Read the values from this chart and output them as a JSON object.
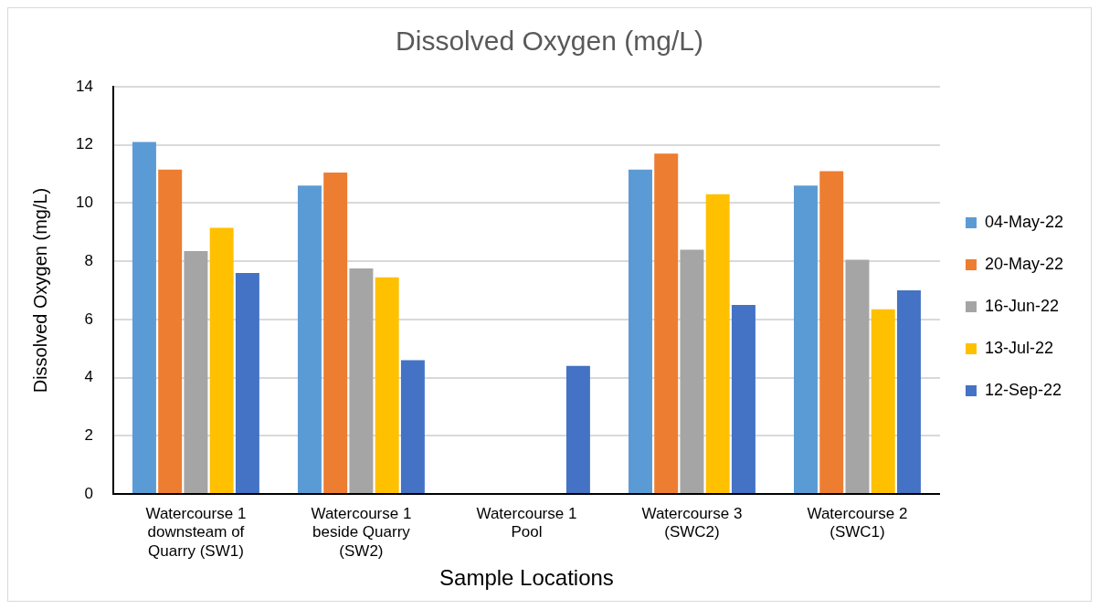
{
  "chart_data": {
    "type": "bar",
    "title": "Dissolved Oxygen (mg/L)",
    "xlabel": "Sample Locations",
    "ylabel": "Dissolved Oxygen (mg/L)",
    "categories": [
      "Watercourse 1 downsteam of Quarry (SW1)",
      "Watercourse 1 beside Quarry (SW2)",
      "Watercourse 1 Pool",
      "Watercourse 3 (SWC2)",
      "Watercourse 2 (SWC1)"
    ],
    "series": [
      {
        "name": "04-May-22",
        "color": "#5b9bd5",
        "values": [
          12.1,
          10.6,
          null,
          11.15,
          10.6
        ]
      },
      {
        "name": "20-May-22",
        "color": "#ed7d31",
        "values": [
          11.15,
          11.05,
          null,
          11.7,
          11.1
        ]
      },
      {
        "name": "16-Jun-22",
        "color": "#a5a5a5",
        "values": [
          8.35,
          7.75,
          null,
          8.4,
          8.05
        ]
      },
      {
        "name": "13-Jul-22",
        "color": "#ffc000",
        "values": [
          9.15,
          7.45,
          null,
          10.3,
          6.35
        ]
      },
      {
        "name": "12-Sep-22",
        "color": "#4472c4",
        "values": [
          7.6,
          4.6,
          4.4,
          6.5,
          7.0
        ]
      }
    ],
    "ylim": [
      0,
      14
    ],
    "yticks": [
      0,
      2,
      4,
      6,
      8,
      10,
      12,
      14
    ],
    "grid": "y",
    "legend": "right"
  }
}
